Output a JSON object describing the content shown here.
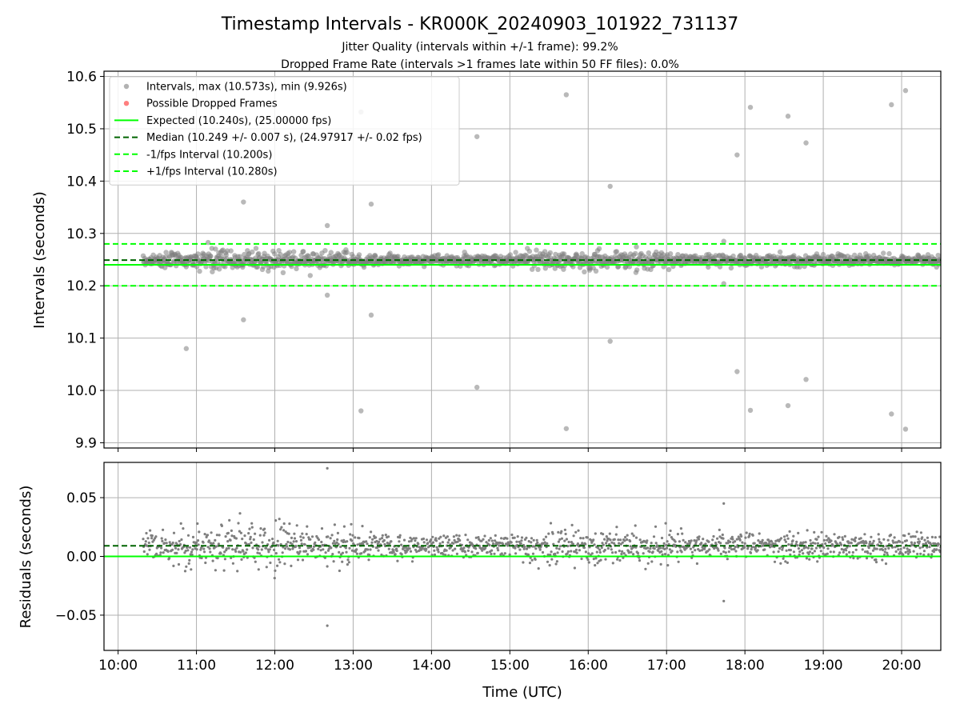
{
  "chart_data": {
    "type": "scatter",
    "title": "Timestamp Intervals - KR000K_20240903_101922_731137",
    "subtitles": [
      "Jitter Quality (intervals within +/-1 frame): 99.2%",
      "Dropped Frame Rate (intervals >1 frames late within 50 FF files): 0.0%"
    ],
    "xlabel": "Time (UTC)",
    "x_tick_labels": [
      "10:00",
      "11:00",
      "12:00",
      "13:00",
      "14:00",
      "15:00",
      "16:00",
      "17:00",
      "18:00",
      "19:00",
      "20:00"
    ],
    "x_ticks_hours": [
      10,
      11,
      12,
      13,
      14,
      15,
      16,
      17,
      18,
      19,
      20
    ],
    "xlim_hours": [
      9.82,
      20.5
    ],
    "data_start_hour": 10.32,
    "data_end_hour": 20.5,
    "grid": true,
    "colors": {
      "points": "#7f7f7f",
      "dropped": "#ff0000",
      "expected": "#00ff00",
      "median": "#006400",
      "bounds": "#00ff00"
    },
    "top_panel": {
      "ylabel": "Intervals (seconds)",
      "ylim": [
        9.89,
        10.61
      ],
      "y_ticks": [
        9.9,
        10.0,
        10.1,
        10.2,
        10.3,
        10.4,
        10.5,
        10.6
      ],
      "y_tick_labels": [
        "9.9",
        "10.0",
        "10.1",
        "10.2",
        "10.3",
        "10.4",
        "10.5",
        "10.6"
      ],
      "expected": 10.24,
      "median": 10.249,
      "lower_bound": 10.2,
      "upper_bound": 10.28,
      "legend_position": "upper-left",
      "legend": [
        {
          "label": "Intervals, max (10.573s), min (9.926s)",
          "kind": "dot-gray"
        },
        {
          "label": "Possible Dropped Frames",
          "kind": "dot-red"
        },
        {
          "label": "Expected (10.240s), (25.00000 fps)",
          "kind": "line-solid-green"
        },
        {
          "label": "Median (10.249 +/- 0.007 s), (24.97917 +/- 0.02 fps)",
          "kind": "line-dashed-darkgreen"
        },
        {
          "label": "-1/fps Interval (10.200s)",
          "kind": "line-dashed-green"
        },
        {
          "label": "+1/fps Interval (10.280s)",
          "kind": "line-dashed-green"
        }
      ],
      "outliers": [
        {
          "x": 10.87,
          "y": 10.08
        },
        {
          "x": 11.6,
          "y": 10.36
        },
        {
          "x": 11.6,
          "y": 10.135
        },
        {
          "x": 12.67,
          "y": 10.315
        },
        {
          "x": 12.67,
          "y": 10.182
        },
        {
          "x": 13.1,
          "y": 10.532
        },
        {
          "x": 13.1,
          "y": 9.961
        },
        {
          "x": 13.23,
          "y": 10.356
        },
        {
          "x": 13.23,
          "y": 10.144
        },
        {
          "x": 14.58,
          "y": 10.485
        },
        {
          "x": 14.58,
          "y": 10.006
        },
        {
          "x": 15.72,
          "y": 10.565
        },
        {
          "x": 15.72,
          "y": 9.927
        },
        {
          "x": 16.28,
          "y": 10.39
        },
        {
          "x": 16.28,
          "y": 10.094
        },
        {
          "x": 17.73,
          "y": 10.285
        },
        {
          "x": 17.73,
          "y": 10.204
        },
        {
          "x": 17.9,
          "y": 10.45
        },
        {
          "x": 17.9,
          "y": 10.036
        },
        {
          "x": 18.07,
          "y": 10.541
        },
        {
          "x": 18.07,
          "y": 9.962
        },
        {
          "x": 18.55,
          "y": 10.524
        },
        {
          "x": 18.55,
          "y": 9.971
        },
        {
          "x": 18.78,
          "y": 10.473
        },
        {
          "x": 18.78,
          "y": 10.021
        },
        {
          "x": 19.87,
          "y": 10.546
        },
        {
          "x": 19.87,
          "y": 9.955
        },
        {
          "x": 20.05,
          "y": 10.573
        },
        {
          "x": 20.05,
          "y": 9.926
        }
      ]
    },
    "bottom_panel": {
      "ylabel": "Residuals (seconds)",
      "ylim": [
        -0.08,
        0.08
      ],
      "y_ticks": [
        -0.05,
        0.0,
        0.05
      ],
      "y_tick_labels": [
        "−0.05",
        "0.00",
        "0.05"
      ],
      "expected": 0.0,
      "median": 0.009,
      "outliers": [
        {
          "x": 12.67,
          "y": 0.075
        },
        {
          "x": 12.67,
          "y": -0.059
        },
        {
          "x": 17.73,
          "y": 0.045
        },
        {
          "x": 17.73,
          "y": -0.038
        }
      ]
    }
  }
}
